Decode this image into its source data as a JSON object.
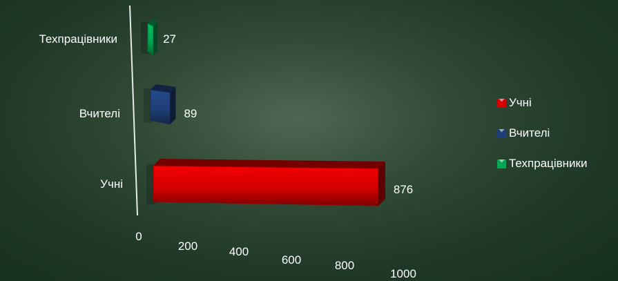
{
  "chart_data": {
    "type": "bar",
    "orientation": "horizontal",
    "style": "3d",
    "categories": [
      "Учні",
      "Вчителі",
      "Техпрацівники"
    ],
    "values": [
      876,
      89,
      27
    ],
    "colors": [
      "#d40000",
      "#1f3f78",
      "#00a651"
    ],
    "xlim": [
      0,
      1000
    ],
    "xticks": [
      "0",
      "200",
      "400",
      "600",
      "800",
      "1000"
    ],
    "data_labels": [
      "876",
      "89",
      "27"
    ],
    "legend": {
      "position": "right",
      "entries": [
        {
          "label": "Учні",
          "color": "#d40000"
        },
        {
          "label": "Вчителі",
          "color": "#1f3f78"
        },
        {
          "label": "Техпрацівники",
          "color": "#00a651"
        }
      ]
    }
  }
}
